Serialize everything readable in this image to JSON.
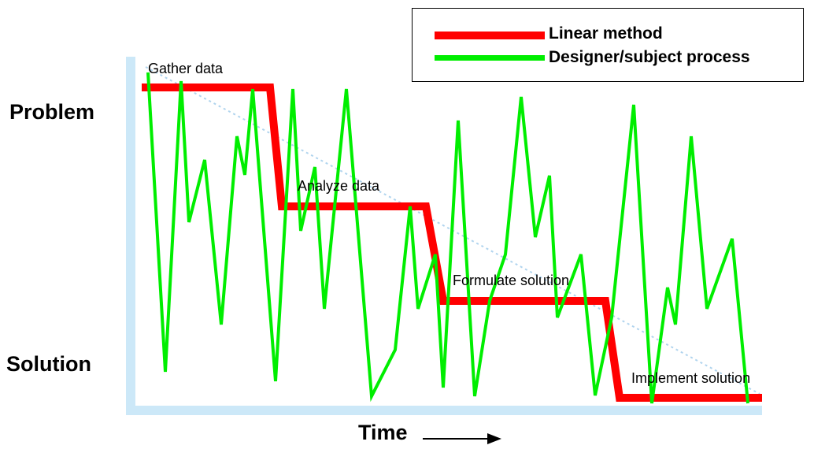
{
  "labels": {
    "problem": "Problem",
    "solution": "Solution",
    "time": "Time"
  },
  "legend": {
    "items": [
      {
        "label": "Linear method",
        "color": "#ff0000"
      },
      {
        "label": "Designer/subject process",
        "color": "#00ee00"
      }
    ]
  },
  "stages": [
    {
      "label": "Gather data"
    },
    {
      "label": "Analyze data"
    },
    {
      "label": "Formulate solution"
    },
    {
      "label": "Implement solution"
    }
  ],
  "colors": {
    "linear": "#ff0000",
    "process": "#00ee00",
    "axis": "#cce8f8",
    "diagonal": "#b0d4ee",
    "arrow": "#000000"
  },
  "icons": {
    "time_arrow": "right-arrow-icon"
  }
}
